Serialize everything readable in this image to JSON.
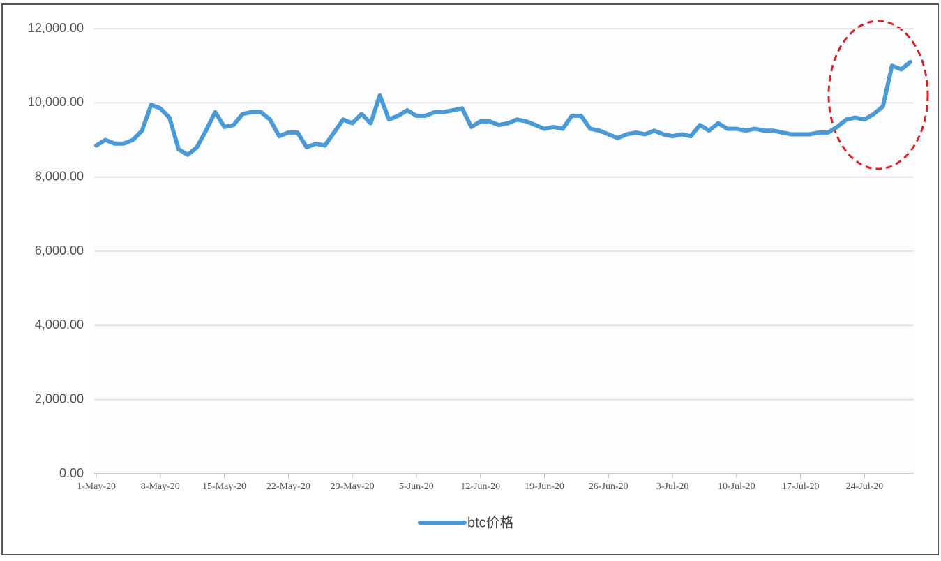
{
  "chart_data": {
    "type": "line",
    "categories": [
      "1-May-20",
      null,
      null,
      null,
      null,
      null,
      null,
      "8-May-20",
      null,
      null,
      null,
      null,
      null,
      null,
      "15-May-20",
      null,
      null,
      null,
      null,
      null,
      null,
      "22-May-20",
      null,
      null,
      null,
      null,
      null,
      null,
      "29-May-20",
      null,
      null,
      null,
      null,
      null,
      null,
      "5-Jun-20",
      null,
      null,
      null,
      null,
      null,
      null,
      "12-Jun-20",
      null,
      null,
      null,
      null,
      null,
      null,
      "19-Jun-20",
      null,
      null,
      null,
      null,
      null,
      null,
      "26-Jun-20",
      null,
      null,
      null,
      null,
      null,
      null,
      "3-Jul-20",
      null,
      null,
      null,
      null,
      null,
      null,
      "10-Jul-20",
      null,
      null,
      null,
      null,
      null,
      null,
      "17-Jul-20",
      null,
      null,
      null,
      null,
      null,
      null,
      "24-Jul-20",
      null,
      null,
      null,
      null,
      null
    ],
    "series": [
      {
        "name": "btc价格",
        "color": "#4a9ad8",
        "values": [
          8850,
          9000,
          8900,
          8900,
          9000,
          9250,
          9950,
          9850,
          9600,
          8750,
          8600,
          8800,
          9250,
          9750,
          9350,
          9400,
          9700,
          9750,
          9750,
          9550,
          9100,
          9200,
          9200,
          8800,
          8900,
          8850,
          9200,
          9550,
          9450,
          9700,
          9450,
          10200,
          9550,
          9650,
          9800,
          9650,
          9650,
          9750,
          9750,
          9800,
          9850,
          9350,
          9500,
          9500,
          9400,
          9450,
          9550,
          9500,
          9400,
          9300,
          9350,
          9300,
          9650,
          9650,
          9300,
          9250,
          9150,
          9050,
          9150,
          9200,
          9150,
          9250,
          9150,
          9100,
          9150,
          9100,
          9400,
          9250,
          9450,
          9300,
          9300,
          9250,
          9300,
          9250,
          9250,
          9200,
          9150,
          9150,
          9150,
          9200,
          9200,
          9350,
          9550,
          9600,
          9550,
          9700,
          9900,
          11000,
          10900,
          11100
        ]
      }
    ],
    "ylim": [
      0,
      12000
    ],
    "yticks": [
      {
        "value": 0,
        "label": "0.00"
      },
      {
        "value": 2000,
        "label": "2,000.00"
      },
      {
        "value": 4000,
        "label": "4,000.00"
      },
      {
        "value": 6000,
        "label": "6,000.00"
      },
      {
        "value": 8000,
        "label": "8,000.00"
      },
      {
        "value": 10000,
        "label": "10,000.00"
      },
      {
        "value": 12000,
        "label": "12,000.00"
      }
    ],
    "grid": true,
    "legend": "bottom"
  }
}
